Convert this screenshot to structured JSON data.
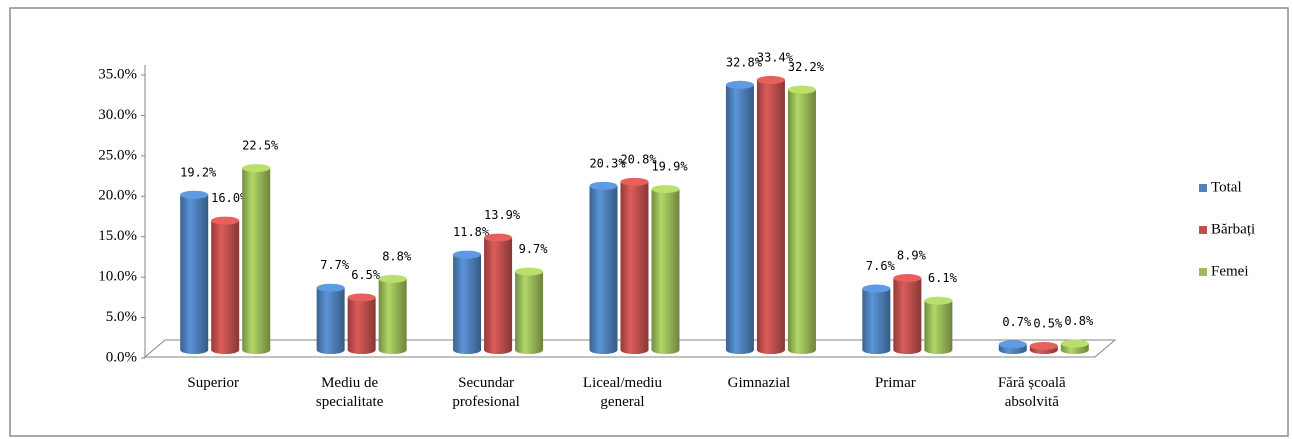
{
  "chart_data": {
    "type": "bar3d",
    "categories": [
      "Superior",
      "Mediu de specialitate",
      "Secundar profesional",
      "Liceal/mediu general",
      "Gimnazial",
      "Primar",
      "Fără școală absolvită"
    ],
    "series": [
      {
        "name": "Total",
        "color": "#4f81bd",
        "values": [
          19.2,
          7.7,
          11.8,
          20.3,
          32.8,
          7.6,
          0.7
        ],
        "value_labels": [
          "19.2%",
          "7.7%",
          "11.8%",
          "20.3%",
          "32.8%",
          "7.6%",
          "0.7%"
        ]
      },
      {
        "name": "Bărbați",
        "color": "#c0504d",
        "values": [
          16.0,
          6.5,
          13.9,
          20.8,
          33.4,
          8.9,
          0.5
        ],
        "value_labels": [
          "16.0%",
          "6.5%",
          "13.9%",
          "20.8%",
          "33.4%",
          "8.9%",
          "0.5%"
        ]
      },
      {
        "name": "Femei",
        "color": "#9bbb59",
        "values": [
          22.5,
          8.8,
          9.7,
          19.9,
          32.2,
          6.1,
          0.8
        ],
        "value_labels": [
          "22.5%",
          "8.8%",
          "9.7%",
          "19.9%",
          "32.2%",
          "6.1%",
          "0.8%"
        ]
      }
    ],
    "ylim": [
      0,
      35
    ],
    "yticks": [
      {
        "value": 0,
        "label": "0.0%"
      },
      {
        "value": 5,
        "label": "5.0%"
      },
      {
        "value": 10,
        "label": "10.0%"
      },
      {
        "value": 15,
        "label": "15.0%"
      },
      {
        "value": 20,
        "label": "20.0%"
      },
      {
        "value": 25,
        "label": "25.0%"
      },
      {
        "value": 30,
        "label": "30.0%"
      },
      {
        "value": 35,
        "label": "35.0%"
      }
    ],
    "grid": false,
    "legend": "right"
  }
}
